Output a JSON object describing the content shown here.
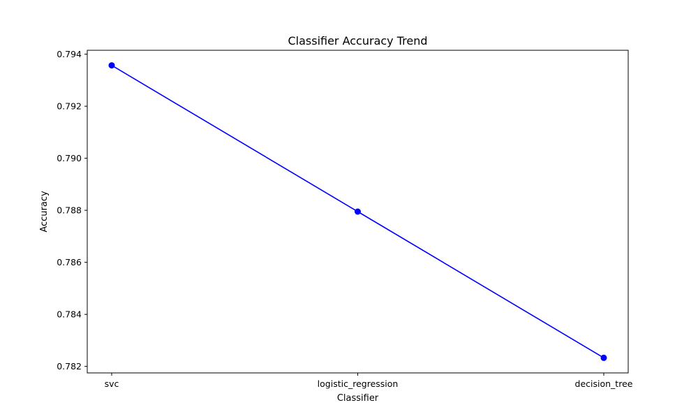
{
  "chart_data": {
    "type": "line",
    "title": "Classifier Accuracy Trend",
    "xlabel": "Classifier",
    "ylabel": "Accuracy",
    "categories": [
      "svc",
      "logistic_regression",
      "decision_tree"
    ],
    "series": [
      {
        "values": [
          0.79357,
          0.78795,
          0.78233
        ],
        "color": "#0000ff",
        "marker": "circle"
      }
    ],
    "ylim": [
      0.78175,
      0.79415
    ],
    "yticks": [
      0.782,
      0.784,
      0.786,
      0.788,
      0.79,
      0.792,
      0.794
    ],
    "ytick_labels": [
      "0.782",
      "0.784",
      "0.786",
      "0.788",
      "0.790",
      "0.792",
      "0.794"
    ],
    "grid": false,
    "legend": "none"
  }
}
